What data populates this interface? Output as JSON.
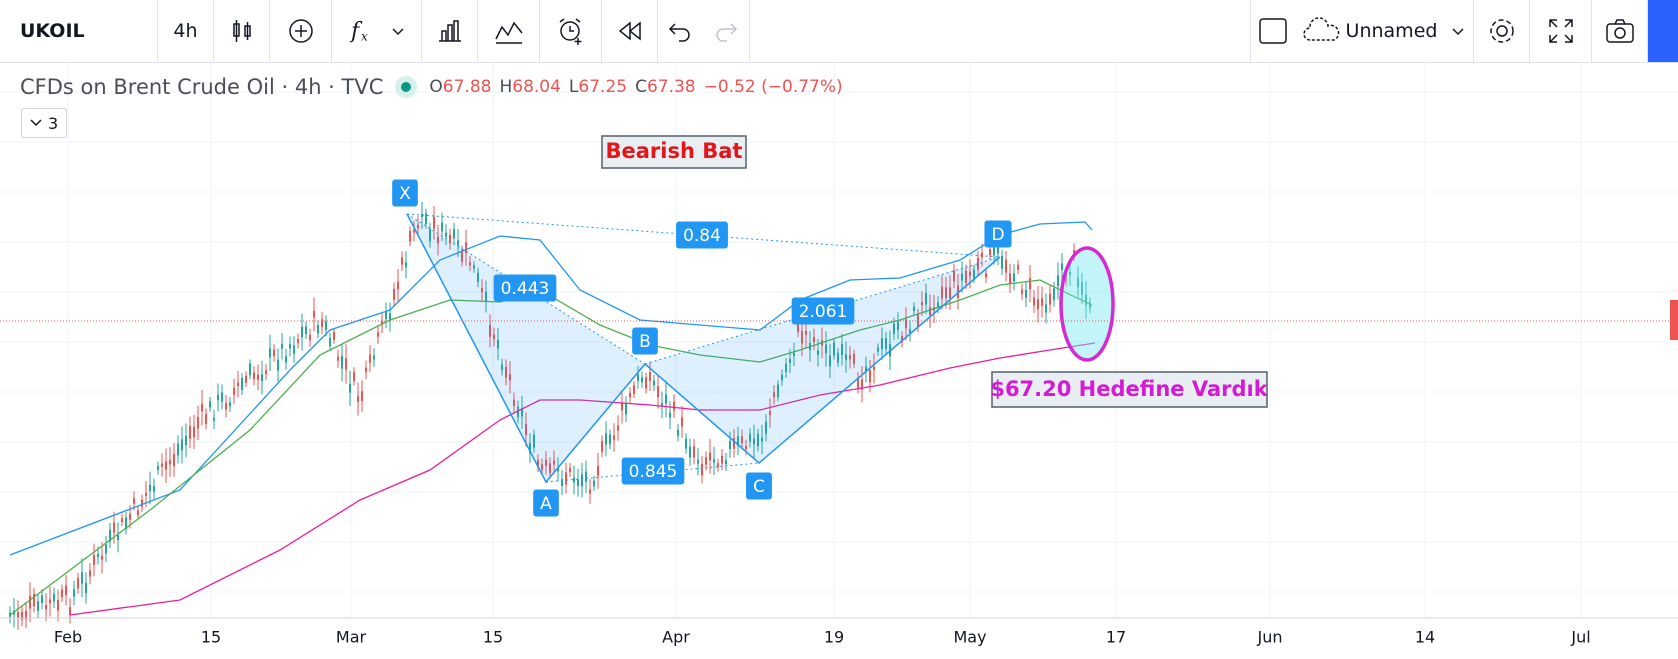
{
  "toolbar": {
    "symbol": "UKOIL",
    "interval": "4h",
    "layout_name": "Unnamed"
  },
  "legend": {
    "title": "CFDs on Brent Crude Oil · 4h · TVC",
    "open_label": "O",
    "open": "67.88",
    "high_label": "H",
    "high": "68.04",
    "low_label": "L",
    "low": "67.25",
    "close_label": "C",
    "close": "67.38",
    "change": "−0.52 (−0.77%)",
    "indicators_count": "3"
  },
  "annotations": {
    "pattern_title": "Bearish Bat",
    "target_note": "$67.20 Hedefine Vardık",
    "points": [
      "X",
      "A",
      "B",
      "C",
      "D"
    ],
    "ratios": {
      "xd": "0.84",
      "xb": "0.443",
      "ac": "0.845",
      "bd": "2.061"
    }
  },
  "time_axis": [
    "Feb",
    "15",
    "Mar",
    "15",
    "Apr",
    "19",
    "May",
    "17",
    "Jun",
    "14",
    "Jul"
  ]
}
